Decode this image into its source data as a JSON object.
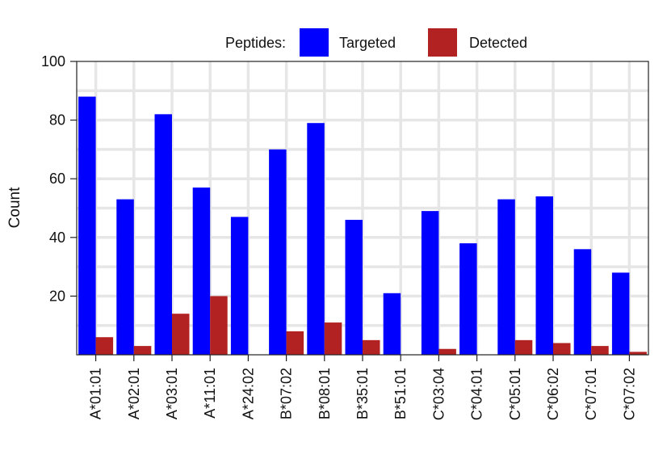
{
  "chart_data": {
    "type": "bar",
    "ylabel": "Count",
    "xlabel": "",
    "ylim": [
      0,
      100
    ],
    "yticks": [
      20,
      40,
      60,
      80,
      100
    ],
    "grid": true,
    "legend": {
      "title": "Peptides:",
      "placement": "top"
    },
    "categories": [
      "A*01:01",
      "A*02:01",
      "A*03:01",
      "A*11:01",
      "A*24:02",
      "B*07:02",
      "B*08:01",
      "B*35:01",
      "B*51:01",
      "C*03:04",
      "C*04:01",
      "C*05:01",
      "C*06:02",
      "C*07:01",
      "C*07:02"
    ],
    "series": [
      {
        "name": "Targeted",
        "color": "#0000ff",
        "values": [
          88,
          53,
          82,
          57,
          47,
          70,
          79,
          46,
          21,
          49,
          38,
          53,
          54,
          36,
          28
        ]
      },
      {
        "name": "Detected",
        "color": "#b22222",
        "values": [
          6,
          3,
          14,
          20,
          0,
          8,
          11,
          5,
          0,
          2,
          0,
          5,
          4,
          3,
          1
        ]
      }
    ]
  }
}
